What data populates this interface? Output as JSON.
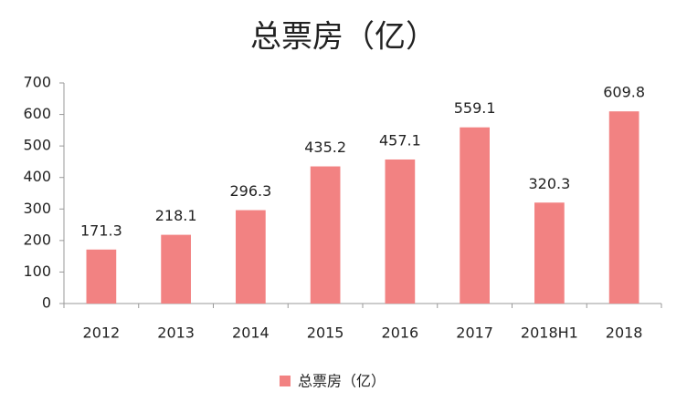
{
  "chart_data": {
    "type": "bar",
    "title": "总票房（亿）",
    "categories": [
      "2012",
      "2013",
      "2014",
      "2015",
      "2016",
      "2017",
      "2018H1",
      "2018"
    ],
    "series": [
      {
        "name": "总票房（亿）",
        "color": "#f28282",
        "values": [
          171.3,
          218.1,
          296.3,
          435.2,
          457.1,
          559.1,
          320.3,
          609.8
        ]
      }
    ],
    "ylim": [
      0,
      700
    ],
    "yticks": [
      0,
      100,
      200,
      300,
      400,
      500,
      600,
      700
    ],
    "grid": false,
    "legend": "bottom"
  }
}
